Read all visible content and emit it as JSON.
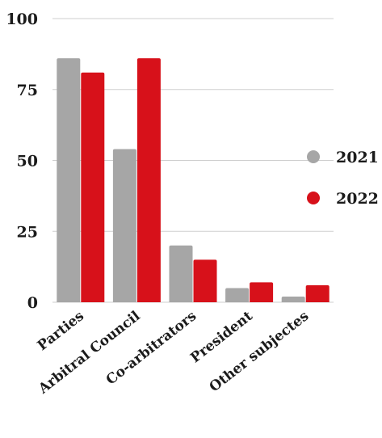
{
  "chart_data": {
    "type": "bar",
    "categories": [
      "Parties",
      "Arbitral Council",
      "Co-arbitrators",
      "President",
      "Other subjectes"
    ],
    "series": [
      {
        "name": "2021",
        "color": "#a6a6a6",
        "values": [
          86,
          54,
          20,
          5,
          2
        ]
      },
      {
        "name": "2022",
        "color": "#d7111a",
        "values": [
          81,
          86,
          15,
          7,
          6
        ]
      }
    ],
    "y_ticks": [
      "0",
      "25",
      "50",
      "75",
      "100"
    ],
    "ylim": [
      0,
      100
    ],
    "grid": true,
    "legend_position": "right"
  }
}
